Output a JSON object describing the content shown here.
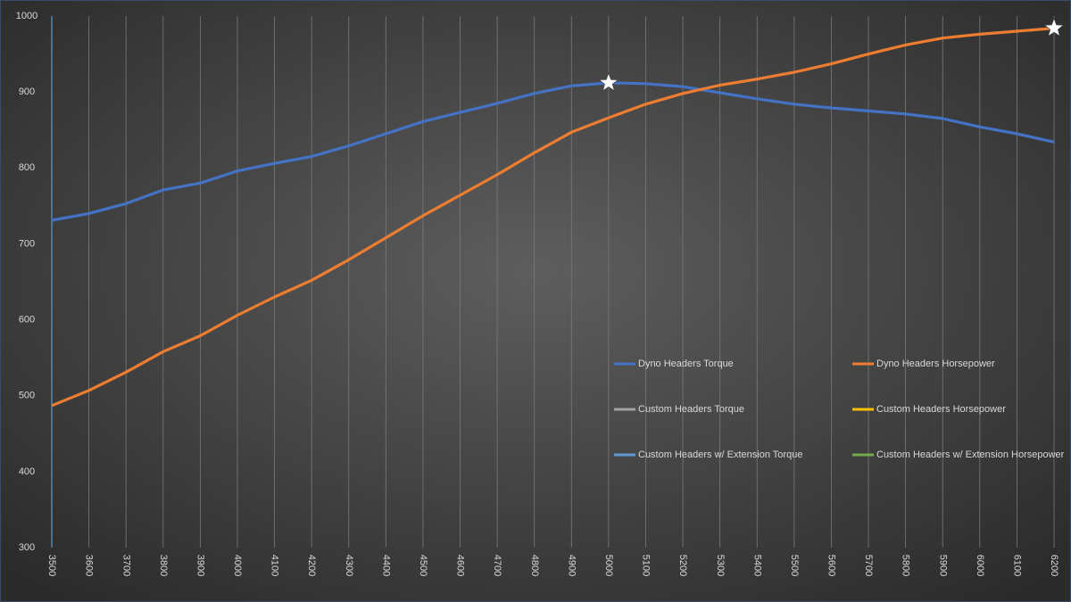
{
  "chart_data": {
    "type": "line",
    "x": [
      3500,
      3600,
      3700,
      3800,
      3900,
      4000,
      4100,
      4200,
      4300,
      4400,
      4500,
      4600,
      4700,
      4800,
      4900,
      5000,
      5100,
      5200,
      5300,
      5400,
      5500,
      5600,
      5700,
      5800,
      5900,
      6000,
      6100,
      6200
    ],
    "xlim": [
      3500,
      6200
    ],
    "xticks": [
      3500,
      3600,
      3700,
      3800,
      3900,
      4000,
      4100,
      4200,
      4300,
      4400,
      4500,
      4600,
      4700,
      4800,
      4900,
      5000,
      5100,
      5200,
      5300,
      5400,
      5500,
      5600,
      5700,
      5800,
      5900,
      6000,
      6100,
      6200
    ],
    "ylim": [
      300,
      1000
    ],
    "yticks": [
      300,
      400,
      500,
      600,
      700,
      800,
      900,
      1000
    ],
    "grid": "x",
    "peak_markers": true,
    "series": [
      {
        "name": "Dyno Headers Torque",
        "color": "#4472c4",
        "values": [
          731,
          740,
          753,
          771,
          780,
          796,
          806,
          815,
          829,
          845,
          861,
          873,
          885,
          898,
          908,
          912,
          911,
          907,
          899,
          891,
          884,
          879,
          875,
          871,
          865,
          854,
          845,
          834
        ]
      },
      {
        "name": "Dyno Headers Horsepower",
        "color": "#ed7d31",
        "values": [
          487,
          507,
          531,
          558,
          579,
          606,
          630,
          652,
          679,
          708,
          737,
          764,
          791,
          820,
          847,
          866,
          884,
          898,
          909,
          917,
          926,
          937,
          950,
          962,
          971,
          976,
          980,
          984
        ]
      },
      {
        "name": "Custom Headers Torque",
        "color": "#a5a5a5",
        "values": [
          null,
          null,
          null,
          null,
          null,
          null,
          null,
          null,
          null,
          null,
          null,
          null,
          null,
          null,
          null,
          null,
          null,
          null,
          null,
          null,
          null,
          null,
          null,
          null,
          null,
          null,
          null,
          null
        ]
      },
      {
        "name": "Custom Headers Horsepower",
        "color": "#ffc000",
        "values": [
          null,
          null,
          null,
          null,
          null,
          null,
          null,
          null,
          null,
          null,
          null,
          null,
          null,
          null,
          null,
          null,
          null,
          null,
          null,
          null,
          null,
          null,
          null,
          null,
          null,
          null,
          null,
          null
        ]
      },
      {
        "name": "Custom Headers w/ Extension Torque",
        "color": "#5b9bd5",
        "values": [
          null,
          null,
          null,
          null,
          null,
          null,
          null,
          null,
          null,
          null,
          null,
          null,
          null,
          null,
          null,
          null,
          null,
          null,
          null,
          null,
          null,
          null,
          null,
          null,
          null,
          null,
          null,
          null
        ]
      },
      {
        "name": "Custom Headers w/ Extension Horsepower",
        "color": "#70ad47",
        "values": [
          null,
          null,
          null,
          null,
          null,
          null,
          null,
          null,
          null,
          null,
          null,
          null,
          null,
          null,
          null,
          null,
          null,
          null,
          null,
          null,
          null,
          null,
          null,
          null,
          null,
          null,
          null,
          null
        ]
      }
    ]
  }
}
